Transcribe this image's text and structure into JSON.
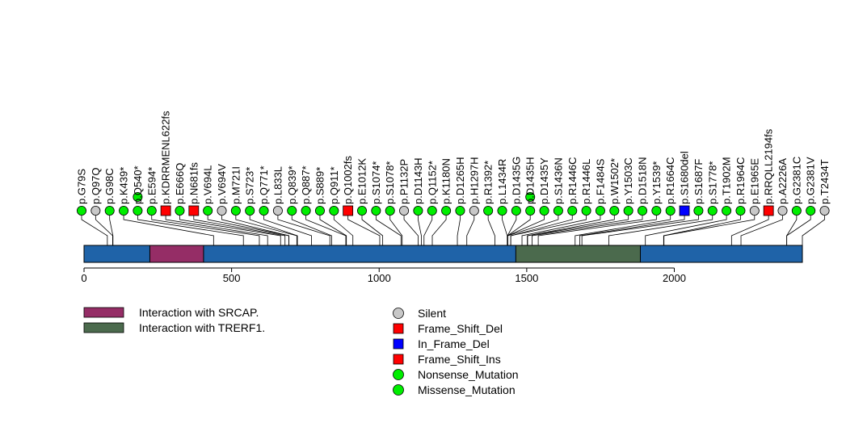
{
  "chart_data": {
    "type": "lollipop",
    "protein_length": 2434,
    "xlim": [
      0,
      2434
    ],
    "ticks": [
      0,
      500,
      1000,
      1500,
      2000
    ],
    "regions": [
      {
        "label": "Interaction with SRCAP.",
        "start": 223,
        "end": 405,
        "color": "#952d66"
      },
      {
        "label": "Interaction with TRERF1.",
        "start": 1463,
        "end": 1885,
        "color": "#4b6a4d"
      }
    ],
    "mutation_types": [
      {
        "name": "Silent",
        "shape": "circle",
        "color": "#c8c8c8"
      },
      {
        "name": "Frame_Shift_Del",
        "shape": "square",
        "color": "#ff0000"
      },
      {
        "name": "In_Frame_Del",
        "shape": "square",
        "color": "#0000ff"
      },
      {
        "name": "Frame_Shift_Ins",
        "shape": "square",
        "color": "#ff0000"
      },
      {
        "name": "Nonsense_Mutation",
        "shape": "circle",
        "color": "#00ee00"
      },
      {
        "name": "Missense_Mutation",
        "shape": "circle",
        "color": "#00ee00"
      }
    ],
    "mutations": [
      {
        "label": "p.G79S",
        "pos": 79,
        "type": "Missense_Mutation",
        "count": 1
      },
      {
        "label": "p.Q97Q",
        "pos": 97,
        "type": "Silent",
        "count": 1
      },
      {
        "label": "p.G98C",
        "pos": 98,
        "type": "Missense_Mutation",
        "count": 1
      },
      {
        "label": "p.K439*",
        "pos": 439,
        "type": "Nonsense_Mutation",
        "count": 1
      },
      {
        "label": "p.Q540*",
        "pos": 540,
        "type": "Nonsense_Mutation",
        "count": 2
      },
      {
        "label": "p.E594*",
        "pos": 594,
        "type": "Nonsense_Mutation",
        "count": 1
      },
      {
        "label": "p.KDRRMENL622fs",
        "pos": 622,
        "type": "Frame_Shift_Del",
        "count": 1
      },
      {
        "label": "p.E666Q",
        "pos": 666,
        "type": "Missense_Mutation",
        "count": 1
      },
      {
        "label": "p.N681fs",
        "pos": 681,
        "type": "Frame_Shift_Ins",
        "count": 1
      },
      {
        "label": "p.V694L",
        "pos": 694,
        "type": "Missense_Mutation",
        "count": 1
      },
      {
        "label": "p.V694V",
        "pos": 694,
        "type": "Silent",
        "count": 1
      },
      {
        "label": "p.M721I",
        "pos": 721,
        "type": "Missense_Mutation",
        "count": 1
      },
      {
        "label": "p.S723*",
        "pos": 723,
        "type": "Nonsense_Mutation",
        "count": 1
      },
      {
        "label": "p.Q771*",
        "pos": 771,
        "type": "Nonsense_Mutation",
        "count": 1
      },
      {
        "label": "p.L833L",
        "pos": 833,
        "type": "Silent",
        "count": 1
      },
      {
        "label": "p.Q839*",
        "pos": 839,
        "type": "Nonsense_Mutation",
        "count": 1
      },
      {
        "label": "p.Q887*",
        "pos": 887,
        "type": "Nonsense_Mutation",
        "count": 1
      },
      {
        "label": "p.S889*",
        "pos": 889,
        "type": "Nonsense_Mutation",
        "count": 1
      },
      {
        "label": "p.Q911*",
        "pos": 911,
        "type": "Nonsense_Mutation",
        "count": 1
      },
      {
        "label": "p.Q1002fs",
        "pos": 1002,
        "type": "Frame_Shift_Del",
        "count": 1
      },
      {
        "label": "p.E1012K",
        "pos": 1012,
        "type": "Missense_Mutation",
        "count": 1
      },
      {
        "label": "p.S1074*",
        "pos": 1074,
        "type": "Nonsense_Mutation",
        "count": 1
      },
      {
        "label": "p.S1078*",
        "pos": 1078,
        "type": "Nonsense_Mutation",
        "count": 1
      },
      {
        "label": "p.P1132P",
        "pos": 1132,
        "type": "Silent",
        "count": 1
      },
      {
        "label": "p.D1143H",
        "pos": 1143,
        "type": "Missense_Mutation",
        "count": 1
      },
      {
        "label": "p.Q1152*",
        "pos": 1152,
        "type": "Nonsense_Mutation",
        "count": 1
      },
      {
        "label": "p.K1180N",
        "pos": 1180,
        "type": "Missense_Mutation",
        "count": 1
      },
      {
        "label": "p.D1265H",
        "pos": 1265,
        "type": "Missense_Mutation",
        "count": 1
      },
      {
        "label": "p.H1297H",
        "pos": 1297,
        "type": "Silent",
        "count": 1
      },
      {
        "label": "p.R1392*",
        "pos": 1392,
        "type": "Nonsense_Mutation",
        "count": 1
      },
      {
        "label": "p.L1434R",
        "pos": 1434,
        "type": "Missense_Mutation",
        "count": 1
      },
      {
        "label": "p.D1435G",
        "pos": 1435,
        "type": "Missense_Mutation",
        "count": 1
      },
      {
        "label": "p.D1435H",
        "pos": 1435,
        "type": "Missense_Mutation",
        "count": 2
      },
      {
        "label": "p.D1435Y",
        "pos": 1435,
        "type": "Missense_Mutation",
        "count": 1
      },
      {
        "label": "p.S1436N",
        "pos": 1436,
        "type": "Missense_Mutation",
        "count": 1
      },
      {
        "label": "p.R1446C",
        "pos": 1446,
        "type": "Missense_Mutation",
        "count": 1
      },
      {
        "label": "p.R1446L",
        "pos": 1446,
        "type": "Missense_Mutation",
        "count": 1
      },
      {
        "label": "p.F1484S",
        "pos": 1484,
        "type": "Missense_Mutation",
        "count": 1
      },
      {
        "label": "p.W1502*",
        "pos": 1502,
        "type": "Nonsense_Mutation",
        "count": 1
      },
      {
        "label": "p.Y1503C",
        "pos": 1503,
        "type": "Missense_Mutation",
        "count": 1
      },
      {
        "label": "p.D1518N",
        "pos": 1518,
        "type": "Missense_Mutation",
        "count": 1
      },
      {
        "label": "p.Y1539*",
        "pos": 1539,
        "type": "Nonsense_Mutation",
        "count": 1
      },
      {
        "label": "p.R1664C",
        "pos": 1664,
        "type": "Missense_Mutation",
        "count": 1
      },
      {
        "label": "p.S1680del",
        "pos": 1680,
        "type": "In_Frame_Del",
        "count": 1
      },
      {
        "label": "p.S1687F",
        "pos": 1687,
        "type": "Missense_Mutation",
        "count": 1
      },
      {
        "label": "p.S1778*",
        "pos": 1778,
        "type": "Nonsense_Mutation",
        "count": 1
      },
      {
        "label": "p.T1902M",
        "pos": 1902,
        "type": "Missense_Mutation",
        "count": 1
      },
      {
        "label": "p.R1964C",
        "pos": 1964,
        "type": "Missense_Mutation",
        "count": 1
      },
      {
        "label": "p.E1965E",
        "pos": 1965,
        "type": "Silent",
        "count": 1
      },
      {
        "label": "p.RRQLL2194fs",
        "pos": 2194,
        "type": "Frame_Shift_Del",
        "count": 1
      },
      {
        "label": "p.A2226A",
        "pos": 2226,
        "type": "Silent",
        "count": 1
      },
      {
        "label": "p.G2381C",
        "pos": 2381,
        "type": "Missense_Mutation",
        "count": 1
      },
      {
        "label": "p.G2381V",
        "pos": 2381,
        "type": "Missense_Mutation",
        "count": 1
      },
      {
        "label": "p.T2434T",
        "pos": 2434,
        "type": "Silent",
        "count": 1
      }
    ]
  }
}
